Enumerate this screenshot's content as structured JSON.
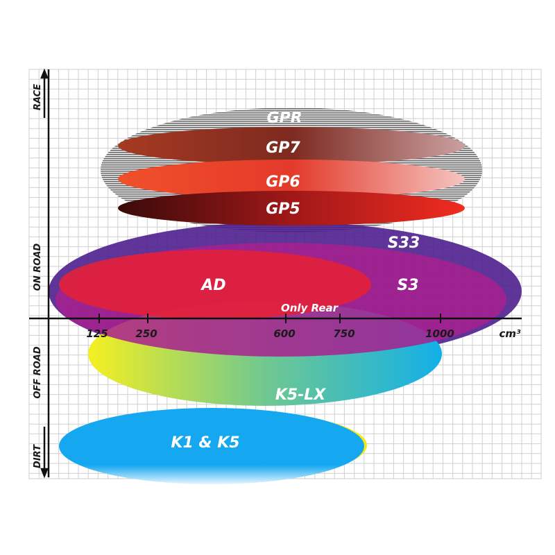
{
  "axes": {
    "vertical": [
      "RACE",
      "ON ROAD",
      "OFF ROAD",
      "DIRT"
    ],
    "horizontal_ticks": [
      "125",
      "250",
      "600",
      "750",
      "1000"
    ],
    "horizontal_unit": "cm³"
  },
  "tires": [
    {
      "label": "GPR",
      "color": "#9a9a9a"
    },
    {
      "label": "GP7",
      "color": "#8b2a1e"
    },
    {
      "label": "GP6",
      "color": "#f04a2a"
    },
    {
      "label": "GP5",
      "color": "#b01818"
    },
    {
      "label": "S33",
      "color": "#5a2a8c"
    },
    {
      "label": "S3",
      "color": "#a3208e"
    },
    {
      "label": "AD",
      "color": "#e0203c"
    },
    {
      "label": "K5-LX",
      "color": "#19b4e8"
    },
    {
      "label": "K1 & K5",
      "color": "#14aaf0"
    }
  ],
  "annotations": {
    "only_rear": "Only Rear"
  }
}
